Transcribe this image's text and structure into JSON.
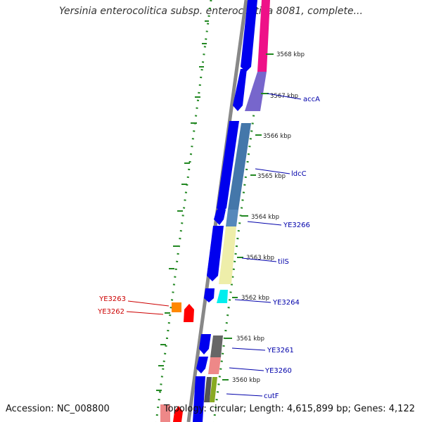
{
  "title": "Yersinia enterocolitica subsp. enterocolitica 8081, complete...",
  "footer": {
    "accession": "Accession: NC_008800",
    "summary": "Topology: circular; Length: 4,615,899 bp; Genes: 4,122"
  },
  "ticks": [
    {
      "label": "3568 kbp"
    },
    {
      "label": "3567 kbp"
    },
    {
      "label": "3566 kbp"
    },
    {
      "label": "3565 kbp"
    },
    {
      "label": "3564 kbp"
    },
    {
      "label": "3563 kbp"
    },
    {
      "label": "3562 kbp"
    },
    {
      "label": "3561 kbp"
    },
    {
      "label": "3560 kbp"
    }
  ],
  "genes": [
    {
      "name": "accA",
      "color": "#0000aa"
    },
    {
      "name": "ldcC",
      "color": "#0000aa"
    },
    {
      "name": "YE3266",
      "color": "#0000aa"
    },
    {
      "name": "tilS",
      "color": "#0000aa"
    },
    {
      "name": "YE3264",
      "color": "#0000aa"
    },
    {
      "name": "YE3261",
      "color": "#0000aa"
    },
    {
      "name": "YE3260",
      "color": "#0000aa"
    },
    {
      "name": "cutF",
      "color": "#0000aa"
    },
    {
      "name": "YE3263",
      "color": "#cc0000"
    },
    {
      "name": "YE3262",
      "color": "#cc0000"
    }
  ],
  "colors": {
    "cds_forward": "#0000ee",
    "cds_reverse": "#ff0000",
    "backbone": "#888888",
    "gc_skew": "#228822",
    "label_forward": "#0000aa",
    "label_reverse": "#cc0000"
  }
}
